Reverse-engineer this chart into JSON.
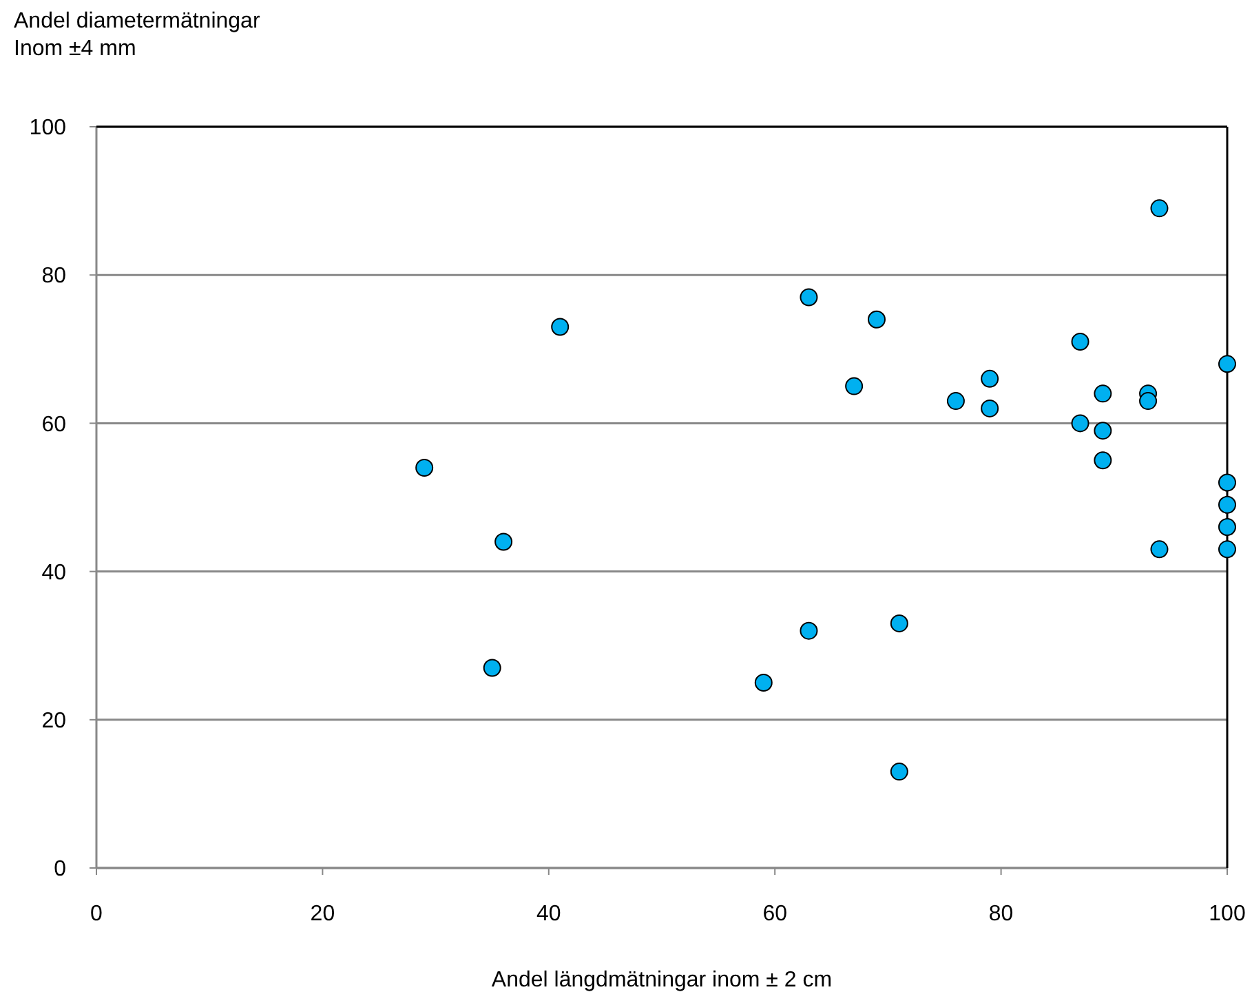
{
  "chart_data": {
    "type": "scatter",
    "ylabel": "Andel diametermätningar\nInom ±4 mm",
    "xlabel": "Andel längdmätningar inom ± 2 cm",
    "x": [
      29,
      35,
      36,
      41,
      59,
      63,
      63,
      67,
      69,
      71,
      71,
      76,
      79,
      79,
      87,
      87,
      89,
      89,
      89,
      93,
      93,
      94,
      94,
      100,
      100,
      100,
      100,
      100
    ],
    "series": [
      {
        "color": "#00b0f0",
        "values": [
          54,
          27,
          44,
          73,
          25,
          77,
          32,
          65,
          74,
          33,
          13,
          63,
          66,
          62,
          71,
          60,
          64,
          59,
          55,
          64,
          63,
          89,
          43,
          68,
          52,
          49,
          46,
          43
        ]
      }
    ],
    "xlim": [
      0,
      100
    ],
    "xticks": [
      0,
      20,
      40,
      60,
      80,
      100
    ],
    "ylim": [
      0,
      100
    ],
    "yticks": [
      0,
      20,
      40,
      60,
      80,
      100
    ],
    "grid": "y",
    "marker": "circle"
  }
}
